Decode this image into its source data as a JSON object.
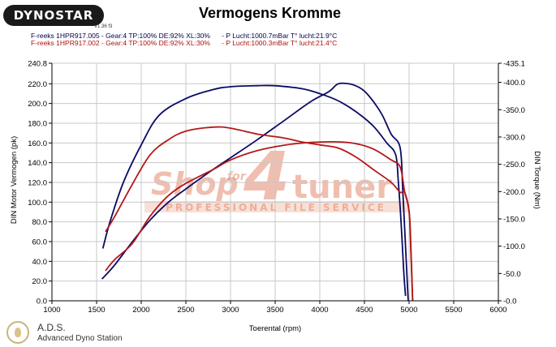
{
  "header": {
    "logo": "DYNOSTAR",
    "logo_version": "V1.36 f3",
    "title": "Vermogens Kromme",
    "info_line_1": "F-reeks 1HPR917.005 - Gear:4 TP:100% DE:92% XL:30%      - P Lucht:1000.7mBar T° lucht:21.9°C",
    "info_line_2": "F-reeks 1HPR917.002 - Gear:4 TP:100% DE:92% XL:30%      - P Lucht:1000.3mBar T° lucht:21.4°C"
  },
  "watermark": {
    "text_shop": "Shop",
    "text_for": "for",
    "text_4": "4",
    "text_tuner": "tuner",
    "text_tagline": "PROFESSIONAL FILE SERVICE"
  },
  "footer": {
    "name": "A.D.S.",
    "subtitle": "Advanced Dyno Station"
  },
  "colors": {
    "series_1": "#0a0a64",
    "series_2": "#b41818",
    "grid": "#c8c8c8",
    "watermark": "#e07050"
  },
  "chart_data": {
    "type": "line",
    "xlabel": "Toerental (rpm)",
    "ylabel": "DIN Motor Vermogen (pk)",
    "y2label": "DIN Torque (Nm)",
    "xlim": [
      1000,
      6000
    ],
    "ylim": [
      0,
      240.8
    ],
    "y2lim": [
      0,
      435.1
    ],
    "grid": true,
    "x_ticks": [
      "1000",
      "1500",
      "2000",
      "2500",
      "3000",
      "3500",
      "4000",
      "4500",
      "5000",
      "5500",
      "6000"
    ],
    "y_ticks": [
      "0.0",
      "20.0",
      "40.0",
      "60.0",
      "80.0",
      "100.0",
      "120.0",
      "140.0",
      "160.0",
      "180.0",
      "200.0",
      "220.0",
      "240.8"
    ],
    "y2_ticks": [
      "-0.0",
      "-50.0",
      "-100.0",
      "-150.0",
      "-200.0",
      "-250.0",
      "-300.0",
      "-350.0",
      "-400.0",
      "-435.1"
    ],
    "y2_values": [
      0,
      50,
      100,
      150,
      200,
      250,
      300,
      350,
      400,
      435.1
    ],
    "series": [
      {
        "axis": "left",
        "color_key": "series_1",
        "points": [
          [
            1570,
            53
          ],
          [
            1650,
            80
          ],
          [
            1800,
            120
          ],
          [
            2000,
            158
          ],
          [
            2200,
            188
          ],
          [
            2500,
            205
          ],
          [
            2800,
            214
          ],
          [
            3000,
            217
          ],
          [
            3300,
            218
          ],
          [
            3500,
            218
          ],
          [
            3800,
            215
          ],
          [
            4000,
            210
          ],
          [
            4200,
            203
          ],
          [
            4400,
            192
          ],
          [
            4600,
            177
          ],
          [
            4750,
            160
          ],
          [
            4850,
            148
          ],
          [
            4880,
            120
          ],
          [
            4910,
            80
          ],
          [
            4940,
            30
          ],
          [
            4960,
            5
          ]
        ]
      },
      {
        "axis": "right",
        "color_key": "series_1",
        "points": [
          [
            1560,
            40
          ],
          [
            1700,
            65
          ],
          [
            1900,
            108
          ],
          [
            2100,
            148
          ],
          [
            2300,
            180
          ],
          [
            2500,
            205
          ],
          [
            2800,
            240
          ],
          [
            3000,
            262
          ],
          [
            3300,
            295
          ],
          [
            3600,
            330
          ],
          [
            3900,
            365
          ],
          [
            4100,
            383
          ],
          [
            4200,
            397
          ],
          [
            4300,
            398
          ],
          [
            4400,
            394
          ],
          [
            4500,
            384
          ],
          [
            4600,
            365
          ],
          [
            4700,
            340
          ],
          [
            4800,
            305
          ],
          [
            4900,
            280
          ],
          [
            4930,
            200
          ],
          [
            4960,
            100
          ],
          [
            4990,
            0
          ]
        ]
      },
      {
        "axis": "left",
        "color_key": "series_2",
        "points": [
          [
            1600,
            70
          ],
          [
            1700,
            85
          ],
          [
            1900,
            118
          ],
          [
            2100,
            148
          ],
          [
            2300,
            163
          ],
          [
            2500,
            172
          ],
          [
            2800,
            176
          ],
          [
            3000,
            175
          ],
          [
            3300,
            169
          ],
          [
            3600,
            165
          ],
          [
            3800,
            161
          ],
          [
            4000,
            158
          ],
          [
            4200,
            155
          ],
          [
            4400,
            146
          ],
          [
            4600,
            133
          ],
          [
            4800,
            120
          ],
          [
            4900,
            110
          ],
          [
            4950,
            110
          ],
          [
            5000,
            90
          ],
          [
            5020,
            50
          ],
          [
            5040,
            0
          ]
        ]
      },
      {
        "axis": "right",
        "color_key": "series_2",
        "points": [
          [
            1600,
            55
          ],
          [
            1700,
            75
          ],
          [
            1900,
            105
          ],
          [
            2100,
            155
          ],
          [
            2300,
            192
          ],
          [
            2500,
            215
          ],
          [
            2800,
            240
          ],
          [
            3000,
            258
          ],
          [
            3300,
            275
          ],
          [
            3600,
            285
          ],
          [
            3900,
            290
          ],
          [
            4200,
            291
          ],
          [
            4400,
            288
          ],
          [
            4600,
            278
          ],
          [
            4800,
            258
          ],
          [
            4900,
            245
          ],
          [
            4950,
            200
          ],
          [
            5000,
            165
          ],
          [
            5020,
            100
          ],
          [
            5040,
            0
          ]
        ]
      }
    ]
  }
}
